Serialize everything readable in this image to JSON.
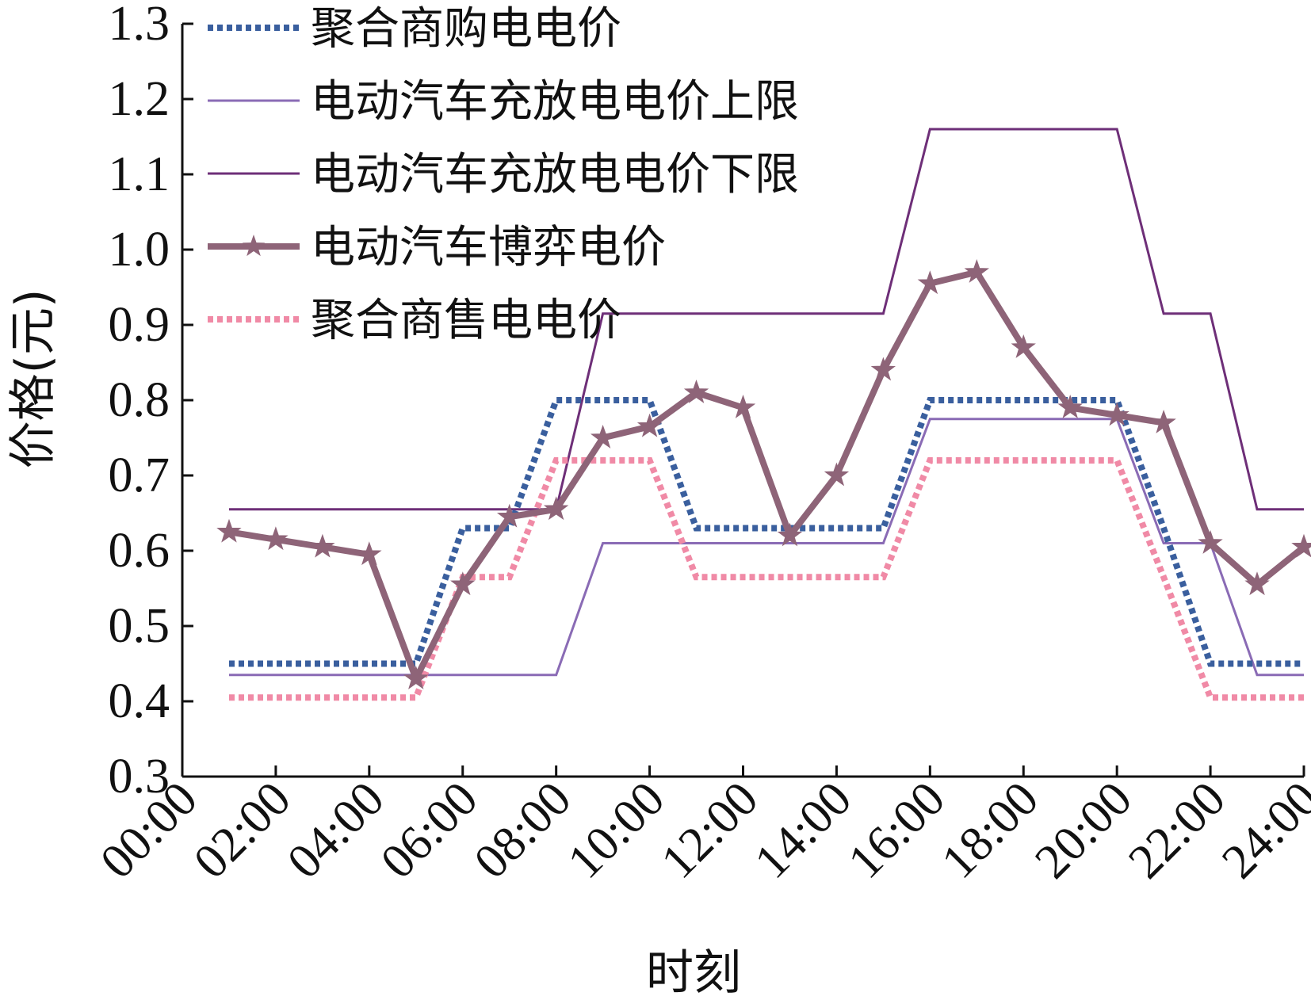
{
  "chart_data": {
    "type": "line",
    "xlabel": "时刻",
    "ylabel": "价格(元)",
    "ylim": [
      0.3,
      1.3
    ],
    "yticks": [
      "0.3",
      "0.4",
      "0.5",
      "0.6",
      "0.7",
      "0.8",
      "0.9",
      "1.0",
      "1.1",
      "1.2",
      "1.3"
    ],
    "xlim": [
      0,
      24
    ],
    "xticks": [
      "00:00",
      "02:00",
      "04:00",
      "06:00",
      "08:00",
      "10:00",
      "12:00",
      "14:00",
      "16:00",
      "18:00",
      "20:00",
      "22:00",
      "24:00"
    ],
    "x": [
      1,
      2,
      3,
      4,
      5,
      6,
      7,
      8,
      9,
      10,
      11,
      12,
      13,
      14,
      15,
      16,
      17,
      18,
      19,
      20,
      21,
      22,
      23,
      24
    ],
    "legend_position": "top-left",
    "series": [
      {
        "name": "聚合商购电电价",
        "color": "#3a5f9e",
        "style": "dotted",
        "values": [
          0.45,
          0.45,
          0.45,
          0.45,
          0.45,
          0.63,
          0.63,
          0.8,
          0.8,
          0.8,
          0.63,
          0.63,
          0.63,
          0.63,
          0.63,
          0.8,
          0.8,
          0.8,
          0.8,
          0.8,
          0.63,
          0.45,
          0.45,
          0.45
        ]
      },
      {
        "name": "电动汽车充放电电价上限",
        "color": "#8a6bb5",
        "style": "solid-thin",
        "values": [
          0.435,
          0.435,
          0.435,
          0.435,
          0.435,
          0.435,
          0.435,
          0.435,
          0.61,
          0.61,
          0.61,
          0.61,
          0.61,
          0.61,
          0.61,
          0.775,
          0.775,
          0.775,
          0.775,
          0.775,
          0.61,
          0.61,
          0.435,
          0.435
        ]
      },
      {
        "name": "电动汽车充放电电价下限",
        "color": "#6e2f78",
        "style": "solid-thin",
        "values": [
          0.655,
          0.655,
          0.655,
          0.655,
          0.655,
          0.655,
          0.655,
          0.655,
          0.915,
          0.915,
          0.915,
          0.915,
          0.915,
          0.915,
          0.915,
          1.16,
          1.16,
          1.16,
          1.16,
          1.16,
          0.915,
          0.915,
          0.655,
          0.655
        ]
      },
      {
        "name": "电动汽车博弈电价",
        "color": "#8e6478",
        "style": "solid-thick-star",
        "values": [
          0.625,
          0.615,
          0.605,
          0.595,
          0.43,
          0.555,
          0.645,
          0.655,
          0.75,
          0.765,
          0.81,
          0.79,
          0.62,
          0.7,
          0.84,
          0.955,
          0.97,
          0.87,
          0.79,
          0.78,
          0.77,
          0.61,
          0.555,
          0.605
        ]
      },
      {
        "name": "聚合商售电电价",
        "color": "#f08aa6",
        "style": "dotted",
        "values": [
          0.405,
          0.405,
          0.405,
          0.405,
          0.405,
          0.565,
          0.565,
          0.72,
          0.72,
          0.72,
          0.565,
          0.565,
          0.565,
          0.565,
          0.565,
          0.72,
          0.72,
          0.72,
          0.72,
          0.72,
          0.565,
          0.405,
          0.405,
          0.405
        ]
      }
    ]
  }
}
